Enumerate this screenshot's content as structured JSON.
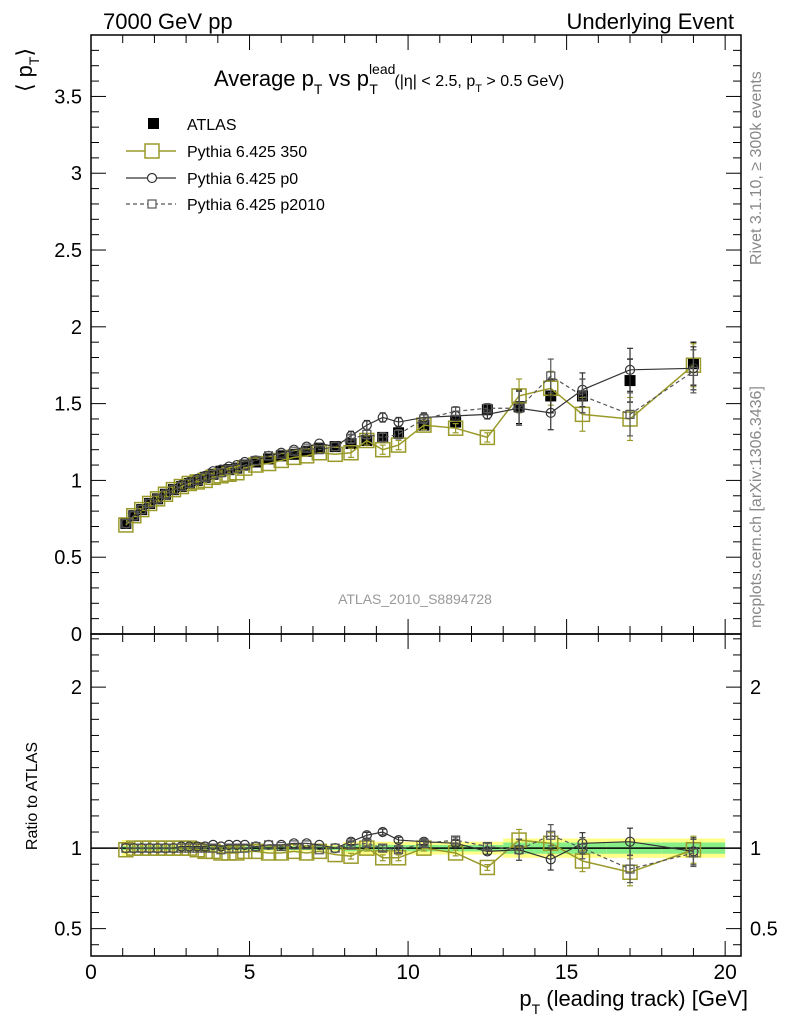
{
  "header": {
    "left": "7000 GeV pp",
    "right": "Underlying Event",
    "title_main": "Average p",
    "title_sub1": "T",
    "title_vs": " vs p",
    "title_sup": "lead",
    "title_sub2": "T",
    "title_cuts": " (|η| < 2.5, p",
    "title_cuts_sub": "T",
    "title_cuts_end": " > 0.5 GeV)"
  },
  "side_labels": {
    "rivet": "Rivet 3.1.10, ≥ 300k events",
    "mcplots": "mcplots.cern.ch [arXiv:1306.3436]"
  },
  "analysis_id": "ATLAS_2010_S8894728",
  "axes": {
    "ylabel_top": "⟨ p",
    "ylabel_top_sub": "T",
    "ylabel_top_close": "⟩",
    "ylabel_bottom": "Ratio to ATLAS",
    "xlabel": "p",
    "xlabel_sub": "T",
    "xlabel_rest": " (leading track) [GeV]",
    "top_yticks": [
      "0",
      "0.5",
      "1",
      "1.5",
      "2",
      "2.5",
      "3",
      "3.5"
    ],
    "bottom_yticks": [
      "0.5",
      "1",
      "2"
    ],
    "xticks": [
      "0",
      "5",
      "10",
      "15",
      "20"
    ]
  },
  "legend": [
    {
      "label": "ATLAS",
      "color": "#000000",
      "marker": "filled-square"
    },
    {
      "label": "Pythia 6.425 350",
      "color": "#9a9a2a",
      "marker": "open-square"
    },
    {
      "label": "Pythia 6.425 p0",
      "color": "#333333",
      "marker": "open-circle"
    },
    {
      "label": "Pythia 6.425 p2010",
      "color": "#555555",
      "marker": "small-open-square-dashed"
    }
  ],
  "chart_data": [
    {
      "type": "scatter",
      "panel": "main",
      "xlim": [
        0,
        20.5
      ],
      "ylim": [
        0,
        3.9
      ],
      "x": [
        1.1,
        1.35,
        1.6,
        1.85,
        2.1,
        2.35,
        2.6,
        2.85,
        3.1,
        3.35,
        3.6,
        3.85,
        4.1,
        4.35,
        4.6,
        4.85,
        5.2,
        5.6,
        6.0,
        6.4,
        6.8,
        7.2,
        7.7,
        8.2,
        8.7,
        9.2,
        9.7,
        10.5,
        11.5,
        12.5,
        13.5,
        14.5,
        15.5,
        17.0,
        19.0
      ],
      "series": [
        {
          "name": "ATLAS",
          "color": "#000000",
          "values": [
            0.72,
            0.77,
            0.81,
            0.85,
            0.88,
            0.91,
            0.94,
            0.96,
            0.98,
            1.0,
            1.02,
            1.04,
            1.06,
            1.07,
            1.08,
            1.1,
            1.12,
            1.14,
            1.16,
            1.17,
            1.19,
            1.21,
            1.22,
            1.24,
            1.26,
            1.28,
            1.31,
            1.36,
            1.38,
            1.46,
            1.48,
            1.55,
            1.55,
            1.65,
            1.76
          ]
        },
        {
          "name": "Pythia 6.425 350",
          "color": "#9a9a2a",
          "values": [
            0.71,
            0.77,
            0.81,
            0.85,
            0.88,
            0.91,
            0.94,
            0.96,
            0.98,
            0.99,
            1.0,
            1.02,
            1.03,
            1.04,
            1.05,
            1.08,
            1.1,
            1.11,
            1.13,
            1.15,
            1.16,
            1.18,
            1.17,
            1.18,
            1.26,
            1.2,
            1.23,
            1.36,
            1.34,
            1.28,
            1.55,
            1.6,
            1.43,
            1.4,
            1.75
          ]
        },
        {
          "name": "Pythia 6.425 p0",
          "color": "#333333",
          "values": [
            0.72,
            0.77,
            0.81,
            0.85,
            0.88,
            0.91,
            0.94,
            0.97,
            0.99,
            1.01,
            1.03,
            1.06,
            1.07,
            1.09,
            1.1,
            1.12,
            1.13,
            1.16,
            1.18,
            1.2,
            1.22,
            1.24,
            1.22,
            1.29,
            1.36,
            1.41,
            1.38,
            1.41,
            1.42,
            1.43,
            1.47,
            1.44,
            1.59,
            1.72,
            1.73
          ]
        },
        {
          "name": "Pythia 6.425 p2010",
          "color": "#555555",
          "values": [
            0.72,
            0.77,
            0.81,
            0.85,
            0.88,
            0.91,
            0.94,
            0.96,
            0.98,
            1.0,
            1.02,
            1.04,
            1.05,
            1.07,
            1.08,
            1.1,
            1.13,
            1.16,
            1.17,
            1.19,
            1.21,
            1.2,
            1.22,
            1.27,
            1.3,
            1.28,
            1.3,
            1.4,
            1.45,
            1.47,
            1.47,
            1.68,
            1.55,
            1.43,
            1.71
          ]
        }
      ]
    },
    {
      "type": "scatter",
      "panel": "ratio",
      "ylabel": "Ratio to ATLAS",
      "xlim": [
        0,
        20.5
      ],
      "ylim": [
        0.33,
        2.33
      ],
      "x": [
        1.1,
        1.35,
        1.6,
        1.85,
        2.1,
        2.35,
        2.6,
        2.85,
        3.1,
        3.35,
        3.6,
        3.85,
        4.1,
        4.35,
        4.6,
        4.85,
        5.2,
        5.6,
        6.0,
        6.4,
        6.8,
        7.2,
        7.7,
        8.2,
        8.7,
        9.2,
        9.7,
        10.5,
        11.5,
        12.5,
        13.5,
        14.5,
        15.5,
        17.0,
        19.0
      ],
      "series": [
        {
          "name": "Pythia 6.425 350",
          "color": "#9a9a2a",
          "values": [
            0.99,
            1.0,
            1.0,
            1.0,
            1.0,
            1.0,
            1.0,
            1.0,
            1.0,
            0.99,
            0.98,
            0.98,
            0.97,
            0.97,
            0.97,
            0.98,
            0.98,
            0.97,
            0.97,
            0.98,
            0.97,
            0.98,
            0.96,
            0.95,
            1.0,
            0.94,
            0.94,
            1.0,
            0.97,
            0.88,
            1.05,
            1.03,
            0.92,
            0.85,
            0.99
          ]
        },
        {
          "name": "Pythia 6.425 p0",
          "color": "#333333",
          "values": [
            1.0,
            1.0,
            1.0,
            1.0,
            1.0,
            1.0,
            1.0,
            1.01,
            1.01,
            1.01,
            1.01,
            1.02,
            1.01,
            1.02,
            1.02,
            1.02,
            1.01,
            1.02,
            1.02,
            1.03,
            1.03,
            1.02,
            1.0,
            1.04,
            1.08,
            1.1,
            1.05,
            1.04,
            1.03,
            0.98,
            0.99,
            0.93,
            1.03,
            1.04,
            0.98
          ]
        },
        {
          "name": "Pythia 6.425 p2010",
          "color": "#555555",
          "values": [
            1.0,
            1.0,
            1.0,
            1.0,
            1.0,
            1.0,
            1.0,
            1.0,
            1.0,
            1.0,
            1.0,
            1.0,
            0.99,
            1.0,
            1.0,
            1.0,
            1.01,
            1.02,
            1.01,
            1.02,
            1.02,
            0.99,
            1.0,
            1.02,
            1.03,
            1.0,
            0.99,
            1.03,
            1.05,
            1.01,
            0.99,
            1.08,
            1.0,
            0.87,
            0.97
          ]
        }
      ]
    }
  ]
}
